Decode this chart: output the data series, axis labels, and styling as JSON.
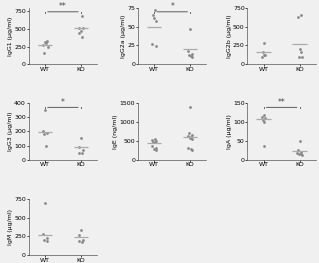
{
  "panels": [
    {
      "ylabel": "IgG1 (μg/ml)",
      "ylim": [
        0,
        800
      ],
      "yticks": [
        0,
        250,
        500,
        750
      ],
      "wt_data": [
        270,
        295,
        330,
        160,
        315,
        245
      ],
      "ko_data": [
        680,
        510,
        385,
        445,
        520,
        475
      ],
      "wt_mean": 265,
      "ko_mean": 510,
      "wt_jitter": [
        -0.05,
        0.03,
        0.06,
        -0.03,
        0.01,
        0.08
      ],
      "ko_jitter": [
        0.04,
        -0.05,
        0.02,
        -0.06,
        0.07,
        0.01
      ],
      "sig": "**",
      "row": 0,
      "col": 0
    },
    {
      "ylabel": "IgG2a (μg/ml)",
      "ylim": [
        0,
        75
      ],
      "yticks": [
        0,
        25,
        50,
        75
      ],
      "wt_data": [
        72,
        65,
        57,
        62,
        24,
        27
      ],
      "ko_data": [
        47,
        18,
        14,
        12,
        10,
        11
      ],
      "wt_mean": 49,
      "ko_mean": 20,
      "wt_jitter": [
        0.02,
        -0.04,
        0.05,
        -0.02,
        0.06,
        -0.06
      ],
      "ko_jitter": [
        0.0,
        -0.05,
        0.04,
        -0.03,
        0.06,
        0.02
      ],
      "sig": "*",
      "row": 0,
      "col": 1
    },
    {
      "ylabel": "IgG2b (μg/ml)",
      "ylim": [
        0,
        750
      ],
      "yticks": [
        0,
        250,
        500,
        750
      ],
      "wt_data": [
        280,
        160,
        125,
        95,
        120
      ],
      "ko_data": [
        650,
        625,
        200,
        155,
        95,
        90
      ],
      "wt_mean": 155,
      "ko_mean": 270,
      "wt_jitter": [
        0.0,
        -0.03,
        0.04,
        -0.05,
        0.02
      ],
      "ko_jitter": [
        0.03,
        -0.04,
        0.0,
        0.05,
        -0.03,
        0.06
      ],
      "sig": null,
      "row": 0,
      "col": 2
    },
    {
      "ylabel": "IgG3 (μg/ml)",
      "ylim": [
        0,
        400
      ],
      "yticks": [
        0,
        100,
        200,
        300,
        400
      ],
      "wt_data": [
        350,
        200,
        190,
        180,
        100
      ],
      "ko_data": [
        155,
        90,
        70,
        50,
        45
      ],
      "wt_mean": 195,
      "ko_mean": 88,
      "wt_jitter": [
        0.0,
        -0.04,
        0.05,
        -0.03,
        0.02
      ],
      "ko_jitter": [
        0.0,
        -0.04,
        0.05,
        -0.06,
        0.03
      ],
      "sig": "*",
      "row": 1,
      "col": 0
    },
    {
      "ylabel": "IgE (ng/ml)",
      "ylim": [
        0,
        1500
      ],
      "yticks": [
        0,
        500,
        1000,
        1500
      ],
      "wt_data": [
        550,
        520,
        490,
        480,
        460,
        350,
        310,
        270,
        250
      ],
      "ko_data": [
        1400,
        720,
        660,
        630,
        600,
        580,
        555,
        310,
        285,
        255
      ],
      "wt_mean": 450,
      "ko_mean": 610,
      "wt_jitter": [
        0.03,
        -0.05,
        0.06,
        -0.03,
        0.02,
        -0.06,
        0.04,
        -0.02,
        0.05
      ],
      "ko_jitter": [
        0.0,
        -0.04,
        0.05,
        -0.06,
        0.03,
        -0.02,
        0.06,
        -0.05,
        0.02,
        0.04
      ],
      "sig": null,
      "row": 1,
      "col": 1
    },
    {
      "ylabel": "IgA (μg/ml)",
      "ylim": [
        0,
        150
      ],
      "yticks": [
        0,
        50,
        100,
        150
      ],
      "wt_data": [
        120,
        115,
        110,
        105,
        100,
        35
      ],
      "ko_data": [
        50,
        25,
        20,
        18,
        16,
        14,
        12
      ],
      "wt_mean": 108,
      "ko_mean": 22,
      "wt_jitter": [
        0.0,
        -0.04,
        0.05,
        -0.03,
        0.02,
        0.0
      ],
      "ko_jitter": [
        0.0,
        -0.04,
        0.05,
        -0.06,
        0.03,
        -0.02,
        0.06
      ],
      "sig": "**",
      "row": 1,
      "col": 2
    },
    {
      "ylabel": "IgM (μg/ml)",
      "ylim": [
        0,
        750
      ],
      "yticks": [
        0,
        250,
        500,
        750
      ],
      "wt_data": [
        700,
        280,
        225,
        200,
        195
      ],
      "ko_data": [
        330,
        270,
        200,
        185,
        175
      ],
      "wt_mean": 268,
      "ko_mean": 248,
      "wt_jitter": [
        0.0,
        -0.04,
        0.05,
        -0.03,
        0.06
      ],
      "ko_jitter": [
        0.0,
        -0.04,
        0.05,
        -0.06,
        0.03
      ],
      "sig": null,
      "row": 2,
      "col": 0
    }
  ],
  "dot_color": "#888888",
  "line_color": "#aaaaaa",
  "sig_color": "#444444",
  "dot_size": 4,
  "sig_fontsize": 5.5,
  "tick_fontsize": 4.5,
  "label_fontsize": 4.5,
  "xtick_labels": [
    "WT",
    "KO"
  ],
  "bg_color": "#f0f0f0",
  "fig_bg": "#f0f0f0"
}
